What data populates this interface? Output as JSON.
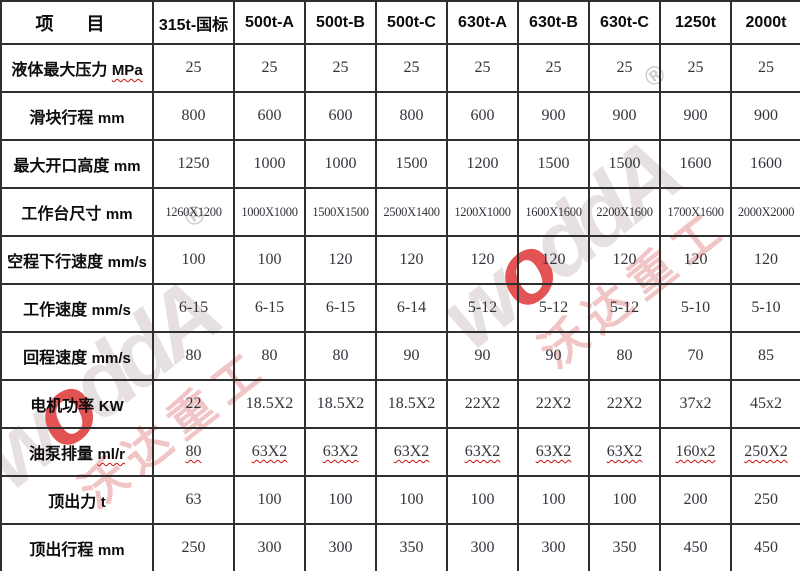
{
  "colors": {
    "background": "#ffffff",
    "grid_border": "#2e2e2e",
    "label_text": "#0c0c0c",
    "value_text": "#33333c",
    "squiggle_red": "#cc1111",
    "watermark_letter": "#e7e0e0",
    "watermark_red_o": "#de2d2d",
    "watermark_cn": "#e79e9e"
  },
  "table": {
    "header": {
      "item_label": "项  目",
      "models": [
        "315t-国标",
        "500t-A",
        "500t-B",
        "500t-C",
        "630t-A",
        "630t-B",
        "630t-C",
        "1250t",
        "2000t"
      ]
    },
    "rows": [
      {
        "label": "液体最大压力",
        "unit": "MPa",
        "unit_squiggle": true,
        "values": [
          "25",
          "25",
          "25",
          "25",
          "25",
          "25",
          "25",
          "25",
          "25"
        ]
      },
      {
        "label": "滑块行程",
        "unit": "mm",
        "values": [
          "800",
          "600",
          "600",
          "800",
          "600",
          "900",
          "900",
          "900",
          "900"
        ]
      },
      {
        "label": "最大开口高度",
        "unit": "mm",
        "values": [
          "1250",
          "1000",
          "1000",
          "1500",
          "1200",
          "1500",
          "1500",
          "1600",
          "1600"
        ]
      },
      {
        "label": "工作台尺寸",
        "unit": "mm",
        "values": [
          "1260X1200",
          "1000X1000",
          "1500X1500",
          "2500X1400",
          "1200X1000",
          "1600X1600",
          "2200X1600",
          "1700X1600",
          "2000X2000"
        ]
      },
      {
        "label": "空程下行速度",
        "unit": "mm/s",
        "values": [
          "100",
          "100",
          "120",
          "120",
          "120",
          "120",
          "120",
          "120",
          "120"
        ]
      },
      {
        "label": "工作速度",
        "unit": "mm/s",
        "values": [
          "6-15",
          "6-15",
          "6-15",
          "6-14",
          "5-12",
          "5-12",
          "5-12",
          "5-10",
          "5-10"
        ]
      },
      {
        "label": "回程速度",
        "unit": "mm/s",
        "values": [
          "80",
          "80",
          "80",
          "90",
          "90",
          "90",
          "80",
          "70",
          "85"
        ]
      },
      {
        "label": "电机功率",
        "unit": "KW",
        "values": [
          "22",
          "18.5X2",
          "18.5X2",
          "18.5X2",
          "22X2",
          "22X2",
          "22X2",
          "37x2",
          "45x2"
        ]
      },
      {
        "label": "油泵排量",
        "unit": "ml/r",
        "unit_squiggle": true,
        "values_squiggle": true,
        "values": [
          "80",
          "63X2",
          "63X2",
          "63X2",
          "63X2",
          "63X2",
          "63X2",
          "160x2",
          "250X2"
        ]
      },
      {
        "label": "顶出力",
        "unit": "t",
        "values": [
          "63",
          "100",
          "100",
          "100",
          "100",
          "100",
          "100",
          "200",
          "250"
        ]
      },
      {
        "label": "顶出行程",
        "unit": "mm",
        "values": [
          "250",
          "300",
          "300",
          "350",
          "300",
          "300",
          "350",
          "450",
          "450"
        ]
      }
    ]
  },
  "watermark": {
    "letters": [
      "w",
      "o",
      "d",
      "d",
      "A"
    ],
    "red_letter_index": 1,
    "cn_text": "沃达重工",
    "registered_mark": "®"
  }
}
